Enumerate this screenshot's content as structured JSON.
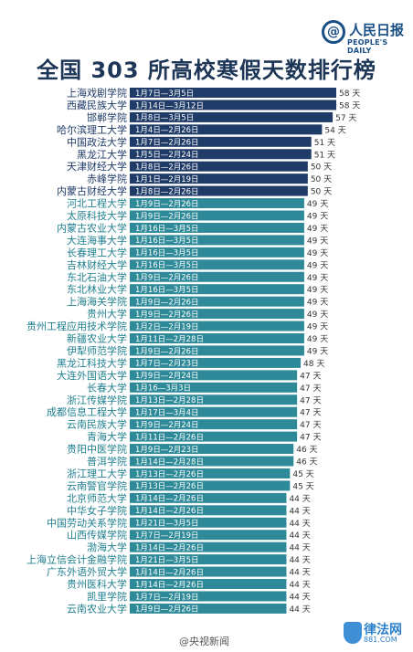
{
  "header": {
    "logo_mark": "@",
    "logo_cn": "人民日报",
    "logo_en": "PEOPLE'S DAILY",
    "title": "全国 303 所高校寒假天数排行榜"
  },
  "footer": {
    "watermark_left": "@央视新闻",
    "badge_text": "律法网",
    "badge_sub": "881.COM"
  },
  "colors": {
    "bar_dark": "#1f3b68",
    "bar_teal": "#2e8a98",
    "label_dark": "#1f3b68",
    "label_teal": "#1f7f8f",
    "title": "#1d3557"
  },
  "chart_data": {
    "type": "bar",
    "orientation": "horizontal",
    "unit": "天",
    "value_suffix": "天",
    "xlim": [
      0,
      58
    ],
    "grid": false,
    "legend": "none",
    "categories": [
      "上海戏剧学院",
      "西藏民族大学",
      "邯郸学院",
      "哈尔滨理工大学",
      "中国政法大学",
      "黑龙江大学",
      "天津财经大学",
      "赤峰学院",
      "内蒙古财经大学",
      "河北工程大学",
      "太原科技大学",
      "内蒙古农业大学",
      "大连海事大学",
      "长春理工大学",
      "吉林财经大学",
      "东北石油大学",
      "东北林业大学",
      "上海海关学院",
      "贵州大学",
      "贵州工程应用技术学院",
      "新疆农业大学",
      "伊犁师范学院",
      "黑龙江科技大学",
      "大连外国语大学",
      "长春大学",
      "浙江传媒学院",
      "成都信息工程大学",
      "云南民族大学",
      "青海大学",
      "贵阳中医学院",
      "普洱学院",
      "浙江理工大学",
      "云南警官学院",
      "北京师范大学",
      "中华女子学院",
      "中国劳动关系学院",
      "山西传媒学院",
      "渤海大学",
      "上海立信会计金融学院",
      "广东外语外贸大学",
      "贵州医科大学",
      "凯里学院",
      "云南农业大学"
    ],
    "date_ranges": [
      "1月7日—3月5日",
      "1月14日—3月12日",
      "1月8日—3月5日",
      "1月4日—2月26日",
      "1月7日—2月26日",
      "1月5日—2月24日",
      "1月8日—2月26日",
      "1月1日—2月19日",
      "1月8日—2月26日",
      "1月9日—2月26日",
      "1月9日—2月26日",
      "1月16日—3月5日",
      "1月16日—3月5日",
      "1月16日—3月5日",
      "1月16日—3月5日",
      "1月9日—2月26日",
      "1月16日—3月5日",
      "1月9日—2月26日",
      "1月9日—2月26日",
      "1月2日—2月19日",
      "1月11日—2月28日",
      "1月9日—2月26日",
      "1月7日—2月23日",
      "1月9日—2月24日",
      "1月16—3月3日",
      "1月13日—2月28日",
      "1月17日—3月4日",
      "1月9日—2月24日",
      "1月11日—2月26日",
      "1月9日—2月23日",
      "1月14日—2月28日",
      "1月13日—2月26日",
      "1月13日—2月26日",
      "1月14日—2月26日",
      "1月14日—2月26日",
      "1月21日—3月5日",
      "1月7日—2月19日",
      "1月14日—2月26日",
      "1月21日—3月5日",
      "1月14日—2月26日",
      "1月14日—2月26日",
      "1月7日—2月19日",
      "1月9日—2月26日"
    ],
    "values": [
      58,
      58,
      57,
      54,
      51,
      51,
      50,
      50,
      50,
      49,
      49,
      49,
      49,
      49,
      49,
      49,
      49,
      49,
      49,
      49,
      49,
      49,
      48,
      47,
      47,
      47,
      47,
      47,
      47,
      46,
      46,
      45,
      45,
      44,
      44,
      44,
      44,
      44,
      44,
      44,
      44,
      44,
      44
    ],
    "value_labels": [
      "58 天",
      "58 天",
      "57 天",
      "54 天",
      "51 天",
      "51 天",
      "50 天",
      "50 天",
      "50 天",
      "49 天",
      "49 天",
      "49 天",
      "49 天",
      "49 天",
      "49 天",
      "49 天",
      "49 天",
      "49 天",
      "49 天",
      "49 天",
      "49 天",
      "49 天",
      "48 天",
      "47 天",
      "47 天",
      "47 天",
      "47 天",
      "47 天",
      "47 天",
      "46 天",
      "46 天",
      "45 天",
      "45 天",
      "44 天",
      "44 天",
      "44 天",
      "44 天",
      "44 天",
      "44 天",
      "44 天",
      "44 天",
      "44 天",
      "44 天"
    ],
    "color_group": [
      "dark",
      "dark",
      "dark",
      "dark",
      "dark",
      "dark",
      "dark",
      "dark",
      "dark",
      "teal",
      "teal",
      "teal",
      "teal",
      "teal",
      "teal",
      "teal",
      "teal",
      "teal",
      "teal",
      "teal",
      "teal",
      "teal",
      "teal",
      "teal",
      "teal",
      "teal",
      "teal",
      "teal",
      "teal",
      "teal",
      "teal",
      "teal",
      "teal",
      "teal",
      "teal",
      "teal",
      "teal",
      "teal",
      "teal",
      "teal",
      "teal",
      "teal",
      "teal"
    ]
  }
}
